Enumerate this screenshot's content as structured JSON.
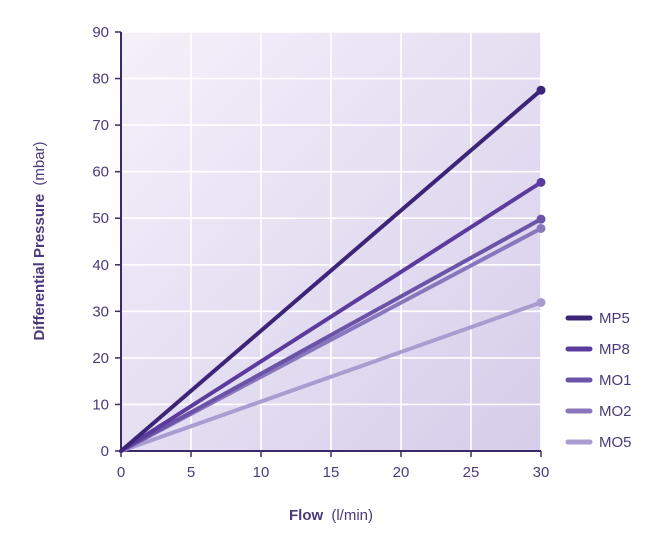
{
  "chart_data": {
    "type": "line",
    "xlabel": {
      "bold": "Flow",
      "unit": "(l/min)"
    },
    "ylabel": {
      "bold": "Differential Pressure",
      "unit": "(mbar)"
    },
    "xlim": [
      0,
      30
    ],
    "ylim": [
      0,
      90
    ],
    "x_ticks": [
      0,
      5,
      10,
      15,
      20,
      25,
      30
    ],
    "y_ticks": [
      0,
      10,
      20,
      30,
      40,
      50,
      60,
      70,
      80,
      90
    ],
    "grid": true,
    "legend_position": "right",
    "series": [
      {
        "name": "MP5",
        "color": "#3c2577",
        "points": [
          [
            0,
            0
          ],
          [
            30,
            77.5
          ]
        ]
      },
      {
        "name": "MP8",
        "color": "#5b3c9e",
        "points": [
          [
            0,
            0
          ],
          [
            30,
            57.7
          ]
        ]
      },
      {
        "name": "MO1",
        "color": "#6b53a8",
        "points": [
          [
            0,
            0
          ],
          [
            30,
            49.8
          ]
        ]
      },
      {
        "name": "MO2",
        "color": "#8a76bd",
        "points": [
          [
            0,
            0
          ],
          [
            30,
            47.8
          ]
        ]
      },
      {
        "name": "MO5",
        "color": "#a99cd0",
        "points": [
          [
            0,
            0
          ],
          [
            30,
            31.9
          ]
        ]
      }
    ]
  },
  "colors": {
    "plot_bg_top": "#f2eff9",
    "plot_bg_bottom": "#d9d1ea",
    "axis": "#3a2a6a",
    "grid": "#ffffff",
    "text": "#4a3a7a"
  }
}
